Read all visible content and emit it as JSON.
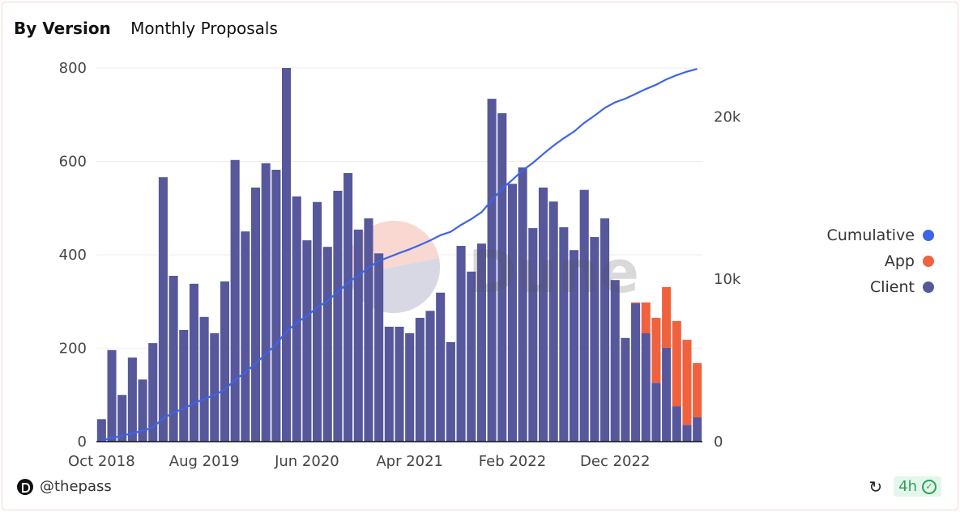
{
  "tabs": [
    {
      "label": "By Version",
      "active": true
    },
    {
      "label": "Monthly Proposals",
      "active": false
    }
  ],
  "footer": {
    "author": "@thepass",
    "refresh_age": "4h"
  },
  "watermark": "Dune",
  "colors": {
    "client": "#57579c",
    "app": "#f0623e",
    "cumulative": "#3b64e8"
  },
  "chart_data": {
    "type": "bar",
    "stacked": true,
    "x_start": "Oct 2018",
    "x_tick_labels": [
      "Oct 2018",
      "Aug 2019",
      "Jun 2020",
      "Apr 2021",
      "Feb 2022",
      "Dec 2022"
    ],
    "x_tick_every_months": 10,
    "y_left": {
      "ticks": [
        "0",
        "200",
        "400",
        "600",
        "800"
      ],
      "range": [
        0,
        800
      ]
    },
    "y_right": {
      "ticks": [
        "0",
        "10k",
        "20k"
      ],
      "range": [
        0,
        23000
      ]
    },
    "legend": {
      "position": "right",
      "entries": [
        "Cumulative",
        "App",
        "Client"
      ]
    },
    "series": [
      {
        "name": "Client",
        "type": "bar",
        "values": [
          48,
          196,
          100,
          180,
          133,
          211,
          566,
          355,
          239,
          338,
          267,
          232,
          343,
          603,
          450,
          544,
          596,
          582,
          800,
          525,
          431,
          513,
          417,
          537,
          575,
          454,
          478,
          403,
          246,
          246,
          232,
          265,
          280,
          319,
          213,
          419,
          364,
          424,
          734,
          703,
          552,
          587,
          457,
          544,
          514,
          459,
          410,
          539,
          438,
          478,
          346,
          222,
          296,
          232,
          126,
          201,
          76,
          36,
          52
        ]
      },
      {
        "name": "App",
        "type": "bar",
        "values": [
          0,
          0,
          0,
          0,
          0,
          0,
          0,
          0,
          0,
          0,
          0,
          0,
          0,
          0,
          0,
          0,
          0,
          0,
          0,
          0,
          0,
          0,
          0,
          0,
          0,
          0,
          0,
          0,
          0,
          0,
          0,
          0,
          0,
          0,
          0,
          0,
          0,
          0,
          0,
          0,
          0,
          0,
          0,
          0,
          0,
          0,
          0,
          0,
          0,
          0,
          0,
          0,
          2,
          66,
          139,
          130,
          182,
          182,
          116
        ]
      },
      {
        "name": "Cumulative",
        "type": "line",
        "axis": "right",
        "values": [
          48,
          244,
          344,
          524,
          657,
          868,
          1434,
          1789,
          2028,
          2366,
          2633,
          2865,
          3208,
          3811,
          4261,
          4805,
          5401,
          5983,
          6783,
          7308,
          7739,
          8252,
          8669,
          9206,
          9781,
          10235,
          10713,
          11116,
          11362,
          11608,
          11840,
          12105,
          12385,
          12704,
          12917,
          13336,
          13700,
          14124,
          14858,
          15561,
          16113,
          16700,
          17157,
          17701,
          18215,
          18674,
          19084,
          19623,
          20061,
          20539,
          20885,
          21107,
          21405,
          21703,
          21968,
          22299,
          22557,
          22775,
          22943
        ]
      }
    ]
  }
}
